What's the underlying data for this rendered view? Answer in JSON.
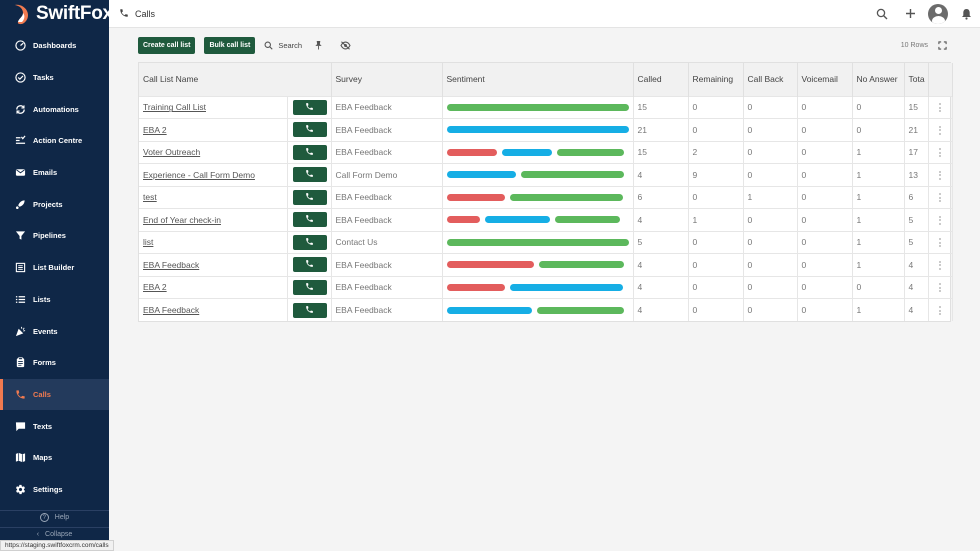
{
  "brand": {
    "name": "SwiftFox"
  },
  "sidebar": {
    "items": [
      {
        "label": "Dashboards",
        "icon": "dashboard-icon"
      },
      {
        "label": "Tasks",
        "icon": "check-circle-icon"
      },
      {
        "label": "Automations",
        "icon": "sync-icon"
      },
      {
        "label": "Action Centre",
        "icon": "action-centre-icon"
      },
      {
        "label": "Emails",
        "icon": "mail-icon"
      },
      {
        "label": "Projects",
        "icon": "rocket-icon"
      },
      {
        "label": "Pipelines",
        "icon": "funnel-icon"
      },
      {
        "label": "List Builder",
        "icon": "list-builder-icon"
      },
      {
        "label": "Lists",
        "icon": "list-icon"
      },
      {
        "label": "Events",
        "icon": "party-icon"
      },
      {
        "label": "Forms",
        "icon": "clipboard-icon"
      },
      {
        "label": "Calls",
        "icon": "phone-icon",
        "active": true
      },
      {
        "label": "Texts",
        "icon": "chat-icon"
      },
      {
        "label": "Maps",
        "icon": "map-icon"
      },
      {
        "label": "Settings",
        "icon": "gear-icon"
      }
    ],
    "help_label": "Help",
    "collapse_label": "Collapse"
  },
  "header": {
    "title": "Calls"
  },
  "toolbar": {
    "create_label": "Create call list",
    "bulk_label": "Bulk call list",
    "search_label": "Search",
    "rows_label": "10 Rows"
  },
  "status_url": "https://staging.swiftfoxcrm.com/calls",
  "colors": {
    "positive": "#5cb85c",
    "neutral": "#16aee5",
    "negative": "#e35d5d",
    "accent": "#f07a50",
    "sidebar": "#0f2747",
    "button": "#1f5a3d"
  },
  "table": {
    "columns": [
      "Call List Name",
      "Survey",
      "Sentiment",
      "Called",
      "Remaining",
      "Call Back",
      "Voicemail",
      "No Answer",
      "Tota"
    ],
    "rows": [
      {
        "name": "Training Call List",
        "survey": "EBA Feedback",
        "sentiment": [
          {
            "type": "pos",
            "w": 1
          }
        ],
        "called": "15",
        "remaining": "0",
        "callback": "0",
        "voicemail": "0",
        "noanswer": "0",
        "total": "15"
      },
      {
        "name": "EBA 2",
        "survey": "EBA Feedback",
        "sentiment": [
          {
            "type": "neu",
            "w": 1
          }
        ],
        "called": "21",
        "remaining": "0",
        "callback": "0",
        "voicemail": "0",
        "noanswer": "0",
        "total": "21"
      },
      {
        "name": "Voter Outreach",
        "survey": "EBA Feedback",
        "sentiment": [
          {
            "type": "neg",
            "w": 0.29
          },
          {
            "type": "neu",
            "w": 0.29
          },
          {
            "type": "pos",
            "w": 0.39
          }
        ],
        "called": "15",
        "remaining": "2",
        "callback": "0",
        "voicemail": "0",
        "noanswer": "1",
        "total": "17"
      },
      {
        "name": "Experience - Call Form Demo",
        "survey": "Call Form Demo",
        "sentiment": [
          {
            "type": "neu",
            "w": 0.39
          },
          {
            "type": "pos",
            "w": 0.58
          }
        ],
        "called": "4",
        "remaining": "9",
        "callback": "0",
        "voicemail": "0",
        "noanswer": "1",
        "total": "13"
      },
      {
        "name": "test",
        "survey": "EBA Feedback",
        "sentiment": [
          {
            "type": "neg",
            "w": 0.33
          },
          {
            "type": "pos",
            "w": 0.64
          }
        ],
        "called": "6",
        "remaining": "0",
        "callback": "1",
        "voicemail": "0",
        "noanswer": "1",
        "total": "6"
      },
      {
        "name": "End of Year check-in",
        "survey": "EBA Feedback",
        "sentiment": [
          {
            "type": "neg",
            "w": 0.19
          },
          {
            "type": "neu",
            "w": 0.38
          },
          {
            "type": "pos",
            "w": 0.38
          }
        ],
        "called": "4",
        "remaining": "1",
        "callback": "0",
        "voicemail": "0",
        "noanswer": "1",
        "total": "5"
      },
      {
        "name": "list",
        "survey": "Contact Us",
        "sentiment": [
          {
            "type": "pos",
            "w": 1
          }
        ],
        "called": "5",
        "remaining": "0",
        "callback": "0",
        "voicemail": "0",
        "noanswer": "1",
        "total": "5"
      },
      {
        "name": "EBA Feedback",
        "survey": "EBA Feedback",
        "sentiment": [
          {
            "type": "neg",
            "w": 0.49
          },
          {
            "type": "pos",
            "w": 0.48
          }
        ],
        "called": "4",
        "remaining": "0",
        "callback": "0",
        "voicemail": "0",
        "noanswer": "1",
        "total": "4"
      },
      {
        "name": "EBA 2",
        "survey": "EBA Feedback",
        "sentiment": [
          {
            "type": "neg",
            "w": 0.33
          },
          {
            "type": "neu",
            "w": 0.64
          }
        ],
        "called": "4",
        "remaining": "0",
        "callback": "0",
        "voicemail": "0",
        "noanswer": "0",
        "total": "4"
      },
      {
        "name": "EBA Feedback",
        "survey": "EBA Feedback",
        "sentiment": [
          {
            "type": "neu",
            "w": 0.48
          },
          {
            "type": "pos",
            "w": 0.49
          }
        ],
        "called": "4",
        "remaining": "0",
        "callback": "0",
        "voicemail": "0",
        "noanswer": "1",
        "total": "4"
      }
    ]
  }
}
